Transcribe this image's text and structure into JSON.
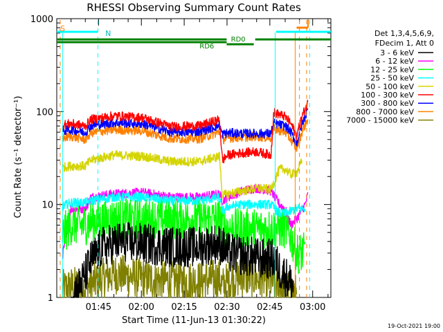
{
  "chart_data": {
    "type": "line",
    "title": "RHESSI Observing Summary Count Rates",
    "xlabel": "Start Time (11-Jun-13 01:30:22)",
    "ylabel": "Count Rate (s⁻¹ detector⁻¹)",
    "y_scale": "log",
    "ylim": [
      1,
      1000
    ],
    "xlim_minutes": [
      0,
      96
    ],
    "x_ticks": [
      {
        "label": "01:45",
        "minute": 14.63
      },
      {
        "label": "02:00",
        "minute": 29.63
      },
      {
        "label": "02:15",
        "minute": 44.63
      },
      {
        "label": "02:30",
        "minute": 59.63
      },
      {
        "label": "02:45",
        "minute": 74.63
      },
      {
        "label": "03:00",
        "minute": 89.63
      }
    ],
    "y_ticks": [
      {
        "label": "1",
        "value": 1
      },
      {
        "label": "10",
        "value": 10
      },
      {
        "label": "100",
        "value": 100
      },
      {
        "label": "1000",
        "value": 1000
      }
    ],
    "legend": {
      "placement": "right",
      "header": [
        "Det 1,3,4,5,6,9,",
        "FDecim 1, Att 0"
      ]
    },
    "series": [
      {
        "name": "3 - 6 keV",
        "color": "#000000",
        "points": [
          [
            5,
            1
          ],
          [
            9,
            1.5
          ],
          [
            12,
            2.5
          ],
          [
            16,
            3.5
          ],
          [
            22,
            4
          ],
          [
            30,
            3.8
          ],
          [
            40,
            3.5
          ],
          [
            48,
            3.5
          ],
          [
            56,
            3.8
          ],
          [
            58,
            3.6
          ],
          [
            60,
            3
          ],
          [
            66,
            2.8
          ],
          [
            72,
            2.6
          ],
          [
            76,
            2.6
          ],
          [
            78,
            2
          ],
          [
            80,
            1.7
          ],
          [
            83,
            1.3
          ]
        ]
      },
      {
        "name": "6 - 12 keV",
        "color": "#ff00ff",
        "points": [
          [
            2,
            2.8
          ],
          [
            5,
            9
          ],
          [
            10,
            9
          ],
          [
            12,
            12
          ],
          [
            20,
            13
          ],
          [
            30,
            13.5
          ],
          [
            40,
            12
          ],
          [
            50,
            12
          ],
          [
            57,
            13
          ],
          [
            58,
            11
          ],
          [
            60,
            12
          ],
          [
            65,
            14
          ],
          [
            70,
            15
          ],
          [
            75,
            14
          ],
          [
            78,
            10
          ],
          [
            80,
            9
          ],
          [
            82,
            6
          ],
          [
            84,
            7
          ],
          [
            87,
            10
          ],
          [
            88,
            13
          ]
        ]
      },
      {
        "name": "12 - 25 keV",
        "color": "#00ff00",
        "points": [
          [
            2,
            4.8
          ],
          [
            5,
            6
          ],
          [
            10,
            6
          ],
          [
            12,
            6.6
          ],
          [
            20,
            7
          ],
          [
            30,
            7
          ],
          [
            40,
            7
          ],
          [
            50,
            7
          ],
          [
            57,
            7
          ],
          [
            58,
            5.8
          ],
          [
            60,
            5.5
          ],
          [
            65,
            5.5
          ],
          [
            70,
            5.5
          ],
          [
            75,
            5.5
          ],
          [
            78,
            5.5
          ],
          [
            80,
            5.5
          ],
          [
            82,
            4.5
          ],
          [
            84,
            3
          ],
          [
            87,
            3
          ]
        ]
      },
      {
        "name": "25 - 50 keV",
        "color": "#00ffff",
        "points": [
          [
            2,
            9.5
          ],
          [
            5,
            10.5
          ],
          [
            10,
            10.5
          ],
          [
            12,
            11
          ],
          [
            20,
            12
          ],
          [
            30,
            12
          ],
          [
            40,
            11
          ],
          [
            50,
            11
          ],
          [
            57,
            12
          ],
          [
            58,
            8.5
          ],
          [
            60,
            9.5
          ],
          [
            65,
            10
          ],
          [
            70,
            10
          ],
          [
            75,
            10
          ],
          [
            78,
            8
          ],
          [
            80,
            8
          ],
          [
            82,
            8.5
          ],
          [
            84,
            9
          ],
          [
            87,
            9
          ]
        ]
      },
      {
        "name": "50 - 100 keV",
        "color": "#d4d400",
        "points": [
          [
            2,
            25
          ],
          [
            5,
            26
          ],
          [
            10,
            26
          ],
          [
            12,
            30
          ],
          [
            20,
            34
          ],
          [
            30,
            33
          ],
          [
            40,
            29
          ],
          [
            50,
            29
          ],
          [
            57,
            33
          ],
          [
            58,
            12.5
          ],
          [
            60,
            13
          ],
          [
            65,
            14
          ],
          [
            70,
            15
          ],
          [
            75,
            14.5
          ],
          [
            78,
            24
          ],
          [
            80,
            24
          ],
          [
            82,
            21
          ],
          [
            84,
            22
          ],
          [
            86,
            30
          ]
        ]
      },
      {
        "name": "100 - 300 keV",
        "color": "#ff0000",
        "points": [
          [
            2,
            72
          ],
          [
            5,
            74
          ],
          [
            10,
            70
          ],
          [
            12,
            82
          ],
          [
            20,
            90
          ],
          [
            30,
            86
          ],
          [
            40,
            69
          ],
          [
            50,
            70
          ],
          [
            57,
            82
          ],
          [
            58,
            30
          ],
          [
            60,
            34
          ],
          [
            65,
            36
          ],
          [
            70,
            37
          ],
          [
            75,
            34
          ],
          [
            76,
            98
          ],
          [
            80,
            88
          ],
          [
            82,
            74
          ],
          [
            84,
            55
          ],
          [
            86,
            90
          ],
          [
            88,
            125
          ]
        ]
      },
      {
        "name": "300 - 800 keV",
        "color": "#0000ff",
        "points": [
          [
            2,
            62
          ],
          [
            5,
            64
          ],
          [
            10,
            60
          ],
          [
            12,
            71
          ],
          [
            20,
            76
          ],
          [
            30,
            74
          ],
          [
            40,
            60
          ],
          [
            50,
            61
          ],
          [
            57,
            71
          ],
          [
            58,
            57
          ],
          [
            60,
            59
          ],
          [
            65,
            58
          ],
          [
            70,
            58
          ],
          [
            75,
            58
          ],
          [
            76,
            75
          ],
          [
            80,
            70
          ],
          [
            82,
            60
          ],
          [
            84,
            45
          ],
          [
            86,
            75
          ],
          [
            88,
            105
          ]
        ]
      },
      {
        "name": "800 - 7000 keV",
        "color": "#ff8000",
        "points": [
          [
            2,
            52
          ],
          [
            5,
            54
          ],
          [
            10,
            50
          ],
          [
            12,
            59
          ],
          [
            20,
            64
          ],
          [
            30,
            62
          ],
          [
            40,
            51
          ],
          [
            50,
            51
          ],
          [
            57,
            60
          ],
          [
            58,
            50
          ],
          [
            60,
            52
          ],
          [
            65,
            53
          ],
          [
            70,
            54
          ],
          [
            75,
            52
          ],
          [
            76,
            65
          ],
          [
            80,
            60
          ],
          [
            82,
            50
          ],
          [
            84,
            40
          ],
          [
            86,
            62
          ],
          [
            88,
            85
          ]
        ]
      },
      {
        "name": "7000 - 15000 keV",
        "color": "#808000",
        "points": [
          [
            2,
            1.2
          ],
          [
            5,
            1.3
          ],
          [
            10,
            1.3
          ],
          [
            12,
            1.4
          ],
          [
            20,
            1.8
          ],
          [
            30,
            1.6
          ],
          [
            40,
            1.5
          ],
          [
            50,
            1.5
          ],
          [
            57,
            1.6
          ],
          [
            58,
            1.3
          ],
          [
            60,
            1.5
          ],
          [
            65,
            1.7
          ],
          [
            70,
            1.6
          ],
          [
            75,
            1.5
          ],
          [
            78,
            1.3
          ],
          [
            80,
            1.2
          ],
          [
            84,
            1.1
          ]
        ]
      }
    ],
    "flag_bars": [
      {
        "label": "S",
        "color": "#ff8000"
      },
      {
        "label": "N",
        "color": "#00ffff"
      },
      {
        "label": "RD0",
        "color": "#008000"
      },
      {
        "label": "RD6",
        "color": "#008000"
      }
    ]
  },
  "footer": {
    "timestamp": "19-Oct-2021 19:00"
  }
}
